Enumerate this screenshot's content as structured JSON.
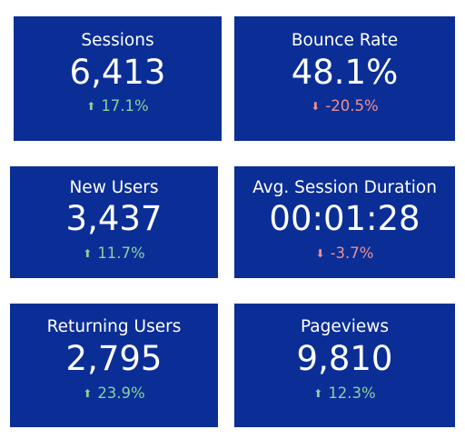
{
  "colors": {
    "card_background": "#0b2e96",
    "text": "#ffffff",
    "positive": "#8bcf9c",
    "negative": "#ef8f8f"
  },
  "metrics": [
    {
      "label": "Sessions",
      "value": "6,413",
      "change": "17.1%",
      "direction": "up",
      "arrow_icon": "up-arrow-icon"
    },
    {
      "label": "Bounce Rate",
      "value": "48.1%",
      "change": "-20.5%",
      "direction": "down",
      "arrow_icon": "down-arrow-icon"
    },
    {
      "label": "New Users",
      "value": "3,437",
      "change": "11.7%",
      "direction": "up",
      "arrow_icon": "up-arrow-icon"
    },
    {
      "label": "Avg. Session Duration",
      "value": "00:01:28",
      "change": "-3.7%",
      "direction": "down",
      "arrow_icon": "down-arrow-icon"
    },
    {
      "label": "Returning Users",
      "value": "2,795",
      "change": "23.9%",
      "direction": "up",
      "arrow_icon": "up-arrow-icon"
    },
    {
      "label": "Pageviews",
      "value": "9,810",
      "change": "12.3%",
      "direction": "up",
      "arrow_icon": "up-arrow-icon"
    }
  ]
}
